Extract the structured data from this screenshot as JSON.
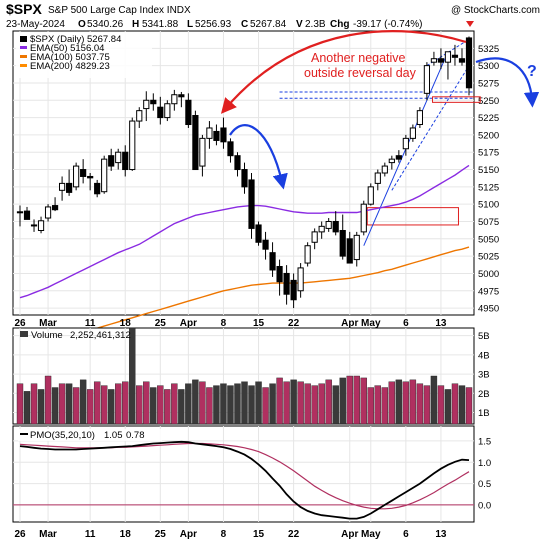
{
  "header": {
    "symbol": "$SPX",
    "name": "S&P 500 Large Cap Index INDX",
    "watermark": "@ StockCharts.com",
    "date": "23-May-2024",
    "open_label": "O",
    "open": "5340.26",
    "high_label": "H",
    "high": "5341.88",
    "low_label": "L",
    "low": "5256.93",
    "close_label": "C",
    "close": "5267.84",
    "vol_label": "V",
    "vol": "2.3B",
    "chg_label": "Chg",
    "chg": "-39.17 (-0.74%)"
  },
  "legend": {
    "price": "$SPX (Daily) 5267.84",
    "ema50": "EMA(50) 5156.04",
    "ema100": "EMA(100) 5037.75",
    "ema200": "EMA(200) 4829.23"
  },
  "annotation": {
    "line1": "Another negative",
    "line2": "outside reversal day",
    "question": "?"
  },
  "volume_label": {
    "name": "Volume",
    "value": "2,252,461,312"
  },
  "pmo_label": {
    "name": "PMO(35,20,10)",
    "value1": "1.05",
    "value2": "0.78"
  },
  "colors": {
    "up": "#000000",
    "down": "#000000",
    "ema50": "#8a2be2",
    "ema100": "#ee7600",
    "ema200": "#ff8c00",
    "vol_up": "#b03060",
    "vol_down": "#3a3a3a",
    "pmo": "#000000",
    "signal": "#b03060",
    "annotation": "#e02020",
    "arrow_blue": "#1a3fe0"
  },
  "chart_data": [
    {
      "type": "candlestick",
      "title": "$SPX S&P 500 Large Cap Index INDX",
      "series_label": "$SPX (Daily) 5267.84",
      "x_tick_labels": [
        "26",
        "Mar",
        "11",
        "18",
        "25",
        "Apr",
        "8",
        "15",
        "22",
        "Apr",
        "May",
        "6",
        "13",
        "20"
      ],
      "x_ticks": [
        {
          "label": "26",
          "index": 0
        },
        {
          "label": "Mar",
          "index": 4
        },
        {
          "label": "11",
          "index": 10
        },
        {
          "label": "18",
          "index": 15
        },
        {
          "label": "25",
          "index": 20
        },
        {
          "label": "Apr",
          "index": 24
        },
        {
          "label": "8",
          "index": 29
        },
        {
          "label": "15",
          "index": 34
        },
        {
          "label": "22",
          "index": 39
        },
        {
          "label": "May",
          "index": 47
        },
        {
          "label": "6",
          "index": 50
        },
        {
          "label": "13",
          "index": 55
        },
        {
          "label": "20",
          "index": 60
        }
      ],
      "y_tick_labels": [
        "4950",
        "4975",
        "5000",
        "5025",
        "5050",
        "5075",
        "5100",
        "5125",
        "5150",
        "5175",
        "5200",
        "5225",
        "5250",
        "5275",
        "5300",
        "5325"
      ],
      "ylim": [
        4940,
        5350
      ],
      "ohlc": [
        [
          5088,
          5098,
          5068,
          5089
        ],
        [
          5090,
          5096,
          5078,
          5078
        ],
        [
          5070,
          5078,
          5060,
          5070
        ],
        [
          5062,
          5082,
          5058,
          5076
        ],
        [
          5080,
          5100,
          5075,
          5096
        ],
        [
          5098,
          5110,
          5090,
          5092
        ],
        [
          5120,
          5140,
          5105,
          5130
        ],
        [
          5130,
          5150,
          5112,
          5117
        ],
        [
          5125,
          5160,
          5120,
          5155
        ],
        [
          5150,
          5165,
          5130,
          5140
        ],
        [
          5140,
          5145,
          5120,
          5138
        ],
        [
          5130,
          5135,
          5110,
          5115
        ],
        [
          5118,
          5170,
          5115,
          5165
        ],
        [
          5170,
          5180,
          5148,
          5155
        ],
        [
          5160,
          5180,
          5150,
          5175
        ],
        [
          5175,
          5185,
          5140,
          5150
        ],
        [
          5150,
          5225,
          5148,
          5220
        ],
        [
          5220,
          5240,
          5210,
          5235
        ],
        [
          5238,
          5263,
          5220,
          5250
        ],
        [
          5250,
          5260,
          5235,
          5245
        ],
        [
          5240,
          5255,
          5215,
          5225
        ],
        [
          5225,
          5250,
          5220,
          5245
        ],
        [
          5245,
          5265,
          5235,
          5258
        ],
        [
          5258,
          5262,
          5240,
          5255
        ],
        [
          5250,
          5260,
          5210,
          5215
        ],
        [
          5228,
          5235,
          5150,
          5150
        ],
        [
          5155,
          5200,
          5140,
          5195
        ],
        [
          5195,
          5220,
          5180,
          5210
        ],
        [
          5205,
          5215,
          5185,
          5192
        ],
        [
          5210,
          5225,
          5180,
          5190
        ],
        [
          5190,
          5195,
          5160,
          5170
        ],
        [
          5170,
          5175,
          5140,
          5150
        ],
        [
          5150,
          5160,
          5115,
          5125
        ],
        [
          5135,
          5145,
          5050,
          5065
        ],
        [
          5070,
          5075,
          5040,
          5045
        ],
        [
          5048,
          5060,
          5020,
          5035
        ],
        [
          5030,
          5045,
          4995,
          5005
        ],
        [
          5010,
          5020,
          4968,
          4988
        ],
        [
          5000,
          5012,
          4955,
          4970
        ],
        [
          4990,
          5000,
          4950,
          4962
        ],
        [
          4975,
          5015,
          4965,
          5008
        ],
        [
          5015,
          5045,
          5010,
          5040
        ],
        [
          5045,
          5065,
          5035,
          5060
        ],
        [
          5060,
          5075,
          5050,
          5068
        ],
        [
          5065,
          5080,
          5060,
          5075
        ],
        [
          5075,
          5090,
          5055,
          5060
        ],
        [
          5062,
          5085,
          5020,
          5025
        ],
        [
          5050,
          5060,
          5015,
          5015
        ],
        [
          5020,
          5060,
          5010,
          5055
        ],
        [
          5060,
          5105,
          5055,
          5100
        ],
        [
          5100,
          5130,
          5098,
          5125
        ],
        [
          5130,
          5150,
          5120,
          5145
        ],
        [
          5145,
          5160,
          5140,
          5155
        ],
        [
          5160,
          5170,
          5150,
          5165
        ],
        [
          5170,
          5178,
          5160,
          5165
        ],
        [
          5180,
          5200,
          5170,
          5195
        ],
        [
          5195,
          5215,
          5190,
          5210
        ],
        [
          5215,
          5240,
          5210,
          5235
        ],
        [
          5260,
          5305,
          5250,
          5300
        ],
        [
          5305,
          5320,
          5300,
          5310
        ],
        [
          5310,
          5325,
          5295,
          5305
        ],
        [
          5305,
          5320,
          5280,
          5320
        ],
        [
          5315,
          5330,
          5300,
          5312
        ],
        [
          5310,
          5325,
          5300,
          5305
        ],
        [
          5340,
          5342,
          5257,
          5268
        ]
      ],
      "ema50": [
        4965,
        4968,
        4972,
        4976,
        4980,
        4985,
        4990,
        4995,
        5000,
        5005,
        5010,
        5015,
        5020,
        5025,
        5030,
        5034,
        5038,
        5042,
        5048,
        5054,
        5060,
        5066,
        5072,
        5076,
        5080,
        5084,
        5086,
        5088,
        5090,
        5092,
        5094,
        5096,
        5097,
        5098,
        5098,
        5097,
        5095,
        5093,
        5091,
        5089,
        5088,
        5087,
        5087,
        5087,
        5088,
        5088,
        5088,
        5088,
        5088,
        5090,
        5092,
        5094,
        5096,
        5098,
        5100,
        5103,
        5107,
        5112,
        5118,
        5124,
        5130,
        5136,
        5142,
        5149,
        5156
      ],
      "ema100": [
        4890,
        4893,
        4895,
        4898,
        4900,
        4903,
        4906,
        4909,
        4912,
        4915,
        4918,
        4921,
        4924,
        4927,
        4930,
        4933,
        4936,
        4939,
        4942,
        4945,
        4948,
        4951,
        4954,
        4957,
        4960,
        4963,
        4966,
        4969,
        4972,
        4975,
        4977,
        4979,
        4981,
        4983,
        4984,
        4985,
        4986,
        4986,
        4986,
        4986,
        4986,
        4987,
        4988,
        4989,
        4990,
        4991,
        4992,
        4993,
        4995,
        4997,
        4999,
        5001,
        5004,
        5006,
        5009,
        5012,
        5015,
        5018,
        5021,
        5024,
        5027,
        5030,
        5033,
        5035,
        5038
      ],
      "ema200": [],
      "hlines": [
        5262,
        5253
      ],
      "rects": [
        {
          "x0": 49.5,
          "x1": 62.5,
          "y0": 5070,
          "y1": 5095
        },
        {
          "x0": 58.8,
          "x1": 65.6,
          "y0": 5255,
          "y1": 5247
        }
      ]
    },
    {
      "type": "bar",
      "title": "Volume 2,252,461,312",
      "y_tick_labels": [
        "1B",
        "2B",
        "3B",
        "4B",
        "5B"
      ],
      "ylim": [
        0.4,
        5.4
      ],
      "values": [
        2.5,
        2.1,
        2.5,
        2.2,
        2.9,
        2.3,
        2.5,
        2.5,
        2.3,
        2.7,
        2.2,
        2.6,
        2.4,
        2.2,
        2.5,
        2.6,
        5.4,
        2.4,
        2.6,
        2.3,
        2.4,
        2.2,
        2.5,
        2.2,
        2.5,
        2.7,
        2.6,
        2.3,
        2.4,
        2.5,
        2.4,
        2.5,
        2.6,
        2.4,
        2.6,
        2.3,
        2.5,
        2.8,
        2.6,
        2.7,
        2.6,
        2.5,
        2.4,
        2.5,
        2.7,
        2.4,
        2.8,
        2.9,
        2.9,
        2.8,
        2.3,
        2.4,
        2.3,
        2.6,
        2.7,
        2.6,
        2.7,
        2.5,
        2.4,
        2.9,
        2.4,
        2.2,
        2.5,
        2.4,
        2.3
      ],
      "up": [
        1,
        0,
        1,
        0,
        1,
        0,
        1,
        0,
        1,
        0,
        1,
        1,
        1,
        0,
        1,
        1,
        0,
        1,
        1,
        0,
        1,
        1,
        1,
        0,
        0,
        0,
        1,
        1,
        0,
        0,
        0,
        0,
        0,
        0,
        0,
        1,
        0,
        1,
        1,
        0,
        1,
        1,
        1,
        1,
        1,
        0,
        0,
        1,
        1,
        1,
        1,
        1,
        1,
        1,
        0,
        1,
        1,
        1,
        1,
        0,
        1,
        0,
        1,
        0,
        1
      ]
    },
    {
      "type": "line",
      "title": "PMO(35,20,10) 1.05, 0.78",
      "y_tick_labels": [
        "0.0",
        "0.5",
        "1.0",
        "1.5"
      ],
      "ylim": [
        -0.4,
        1.85
      ],
      "pmo": [
        1.38,
        1.36,
        1.34,
        1.32,
        1.31,
        1.3,
        1.3,
        1.3,
        1.3,
        1.31,
        1.32,
        1.33,
        1.34,
        1.35,
        1.36,
        1.37,
        1.38,
        1.4,
        1.42,
        1.44,
        1.45,
        1.46,
        1.47,
        1.48,
        1.47,
        1.44,
        1.42,
        1.4,
        1.38,
        1.35,
        1.31,
        1.25,
        1.18,
        1.08,
        0.95,
        0.8,
        0.62,
        0.45,
        0.25,
        0.08,
        -0.05,
        -0.14,
        -0.2,
        -0.24,
        -0.26,
        -0.28,
        -0.3,
        -0.32,
        -0.32,
        -0.28,
        -0.2,
        -0.1,
        0.0,
        0.1,
        0.2,
        0.3,
        0.4,
        0.5,
        0.62,
        0.74,
        0.85,
        0.94,
        1.01,
        1.06,
        1.05
      ],
      "signal": [
        1.42,
        1.41,
        1.4,
        1.39,
        1.38,
        1.37,
        1.36,
        1.35,
        1.34,
        1.34,
        1.34,
        1.34,
        1.34,
        1.34,
        1.35,
        1.35,
        1.36,
        1.37,
        1.38,
        1.39,
        1.4,
        1.41,
        1.42,
        1.43,
        1.44,
        1.44,
        1.44,
        1.43,
        1.42,
        1.41,
        1.39,
        1.37,
        1.34,
        1.3,
        1.25,
        1.18,
        1.1,
        1.01,
        0.91,
        0.8,
        0.68,
        0.56,
        0.44,
        0.34,
        0.25,
        0.17,
        0.1,
        0.04,
        -0.01,
        -0.05,
        -0.08,
        -0.09,
        -0.09,
        -0.08,
        -0.05,
        -0.01,
        0.05,
        0.12,
        0.2,
        0.29,
        0.39,
        0.49,
        0.58,
        0.68,
        0.78
      ],
      "zero_line": 0.0
    }
  ]
}
